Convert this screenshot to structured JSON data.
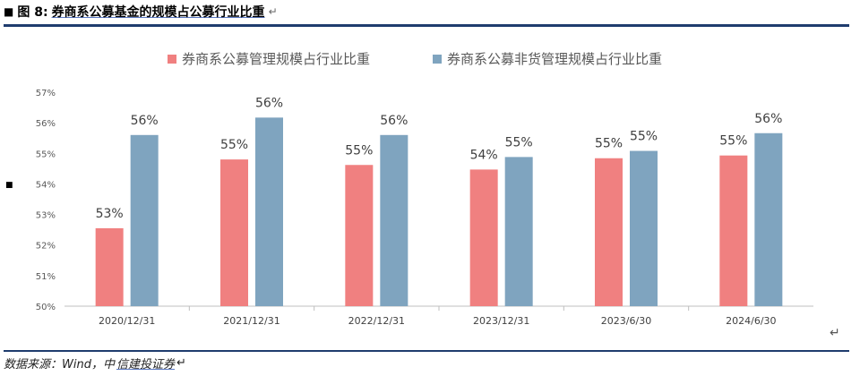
{
  "header": {
    "bullet": "■",
    "fig_label": "图 8:",
    "fig_title": "券商系公募基金的规模占公募行业比重",
    "return_mark": "↵"
  },
  "side_bullet": "■",
  "end_mark": "↵",
  "source": {
    "prefix": "数据来源：Wind，中",
    "linked": "信建投证券",
    "return_mark": "↵"
  },
  "colors": {
    "series_1": "#f08080",
    "series_2": "#7fa4bf",
    "axis": "#bfbfbf",
    "rule": "#1f3c6e"
  },
  "chart_data": {
    "type": "bar",
    "categories": [
      "2020/12/31",
      "2021/12/31",
      "2022/12/31",
      "2023/12/31",
      "2023/6/30",
      "2024/6/30"
    ],
    "series": [
      {
        "name": "券商系公募管理规模占行业比重",
        "values": [
          52.55,
          54.8,
          54.62,
          54.47,
          54.84,
          54.93
        ],
        "labels": [
          "53%",
          "55%",
          "55%",
          "54%",
          "55%",
          "55%"
        ]
      },
      {
        "name": "券商系公募非货管理规模占行业比重",
        "values": [
          55.6,
          56.17,
          55.6,
          54.88,
          55.08,
          55.66
        ],
        "labels": [
          "56%",
          "56%",
          "56%",
          "55%",
          "55%",
          "56%"
        ]
      }
    ],
    "ylim": [
      50,
      57
    ],
    "yticks": [
      "50%",
      "51%",
      "52%",
      "53%",
      "54%",
      "55%",
      "56%",
      "57%"
    ],
    "legend_position": "top-center",
    "grid": false
  }
}
